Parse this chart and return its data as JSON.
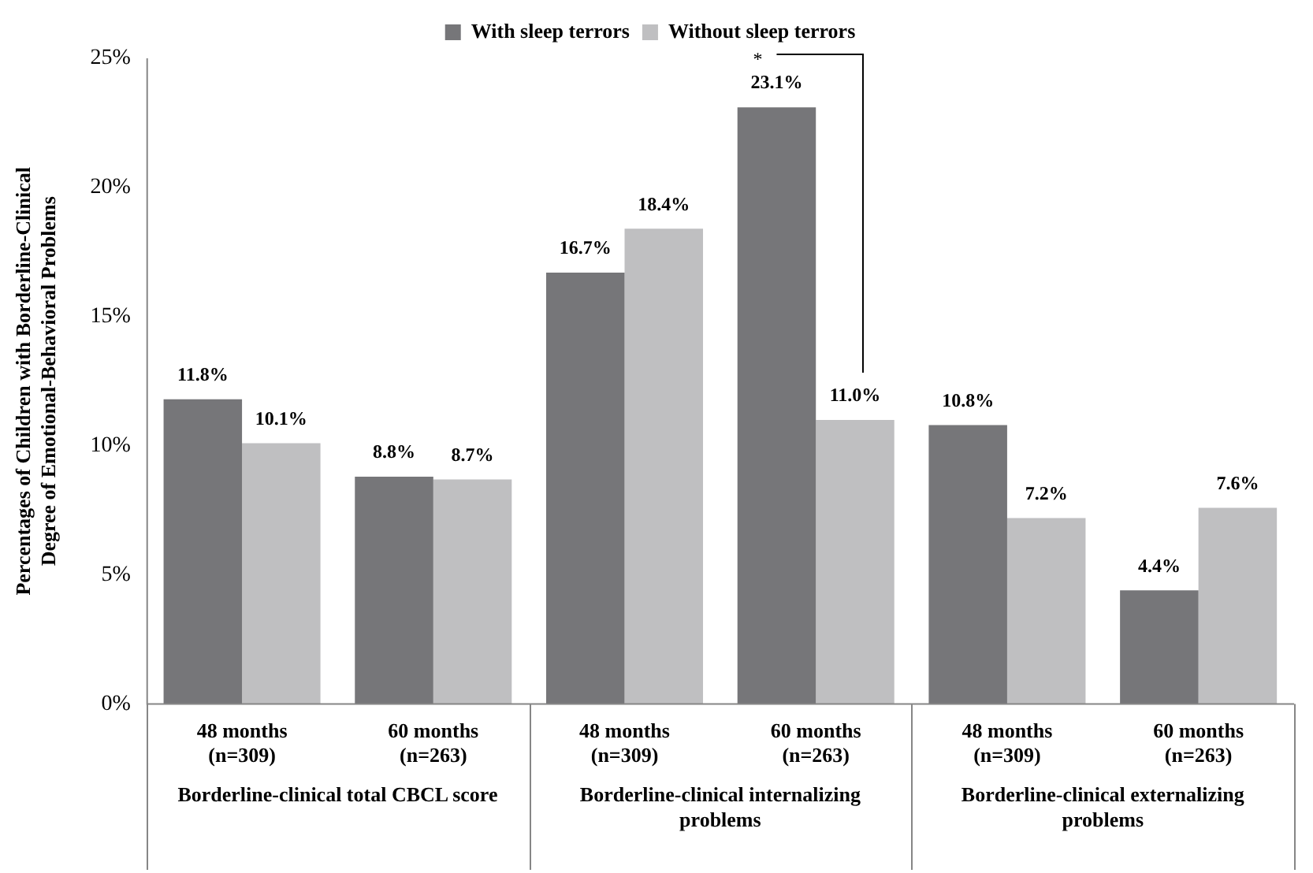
{
  "chart_data": {
    "type": "bar",
    "categories": [
      "48 months\n(n=309)",
      "60 months\n(n=263)",
      "48 months\n(n=309)",
      "60 months\n(n=263)",
      "48 months\n(n=309)",
      "60 months\n(n=263)"
    ],
    "series": [
      {
        "name": "With sleep terrors",
        "color": "#767679",
        "values": [
          11.8,
          8.8,
          16.7,
          23.1,
          10.8,
          4.4
        ],
        "value_labels": [
          "11.8%",
          "8.8%",
          "16.7%",
          "23.1%",
          "10.8%",
          "4.4%"
        ]
      },
      {
        "name": "Without sleep terrors",
        "color": "#bfbfc1",
        "values": [
          10.1,
          8.7,
          18.4,
          11.0,
          7.2,
          7.6
        ],
        "value_labels": [
          "10.1%",
          "8.7%",
          "18.4%",
          "11.0%",
          "7.2%",
          "7.6%"
        ]
      }
    ],
    "ylabel": "Percentages of Children with Borderline-Clinical Degree of Emotional-Behavioral Problems",
    "ylim": [
      0,
      25
    ],
    "yticks": [
      {
        "value": 0,
        "label": "0%"
      },
      {
        "value": 5,
        "label": "5%"
      },
      {
        "value": 10,
        "label": "10%"
      },
      {
        "value": 15,
        "label": "15%"
      },
      {
        "value": 20,
        "label": "20%"
      },
      {
        "value": 25,
        "label": "25%"
      }
    ],
    "annotations": [
      "*",
      "Borderline-clinical total CBCL score",
      "Borderline-clinical internalizing problems",
      "Borderline-clinical externalizing problems"
    ],
    "grid": false,
    "legend": "top"
  }
}
